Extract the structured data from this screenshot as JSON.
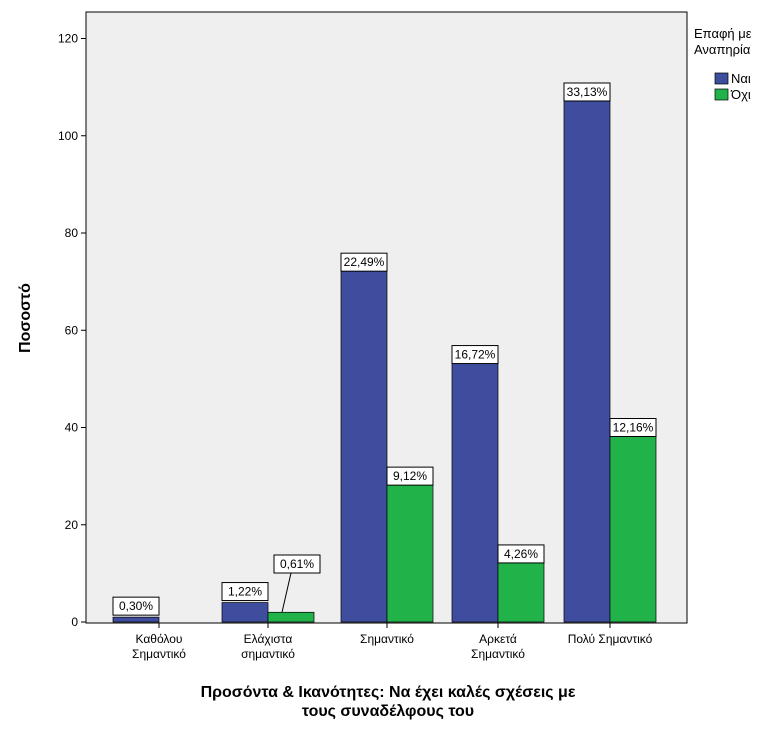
{
  "chart_data": {
    "type": "bar",
    "title": "",
    "xlabel": "Προσόντα & Ικανότητες: Να έχει καλές σχέσεις με τους συναδέλφους του",
    "xlabel_lines": [
      "Προσόντα & Ικανότητες: Να έχει καλές σχέσεις με",
      "τους συναδέλφους του"
    ],
    "ylabel": "Ποσοστό",
    "ylim": [
      0,
      125
    ],
    "yticks": [
      0,
      20,
      40,
      60,
      80,
      100,
      120
    ],
    "grid": false,
    "legend_position": "right",
    "legend_title_lines": [
      "Επαφή με",
      "Αναπηρία"
    ],
    "categories": [
      [
        "Καθόλου",
        "Σημαντικό"
      ],
      [
        "Ελάχιστα",
        "σημαντικό"
      ],
      [
        "Σημαντικό"
      ],
      [
        "Αρκετά",
        "Σημαντικό"
      ],
      [
        "Πολύ Σημαντικό"
      ]
    ],
    "series": [
      {
        "name": "Ναι",
        "color": "#3F4D9F",
        "values": [
          1,
          4,
          74,
          55,
          109
        ],
        "labels": [
          "0,30%",
          "1,22%",
          "22,49%",
          "16,72%",
          "33,13%"
        ]
      },
      {
        "name": "Όχι",
        "color": "#21B24A",
        "values": [
          0,
          2,
          30,
          14,
          40
        ],
        "labels": [
          "",
          "0,61%",
          "9,12%",
          "4,26%",
          "12,16%"
        ]
      }
    ]
  }
}
